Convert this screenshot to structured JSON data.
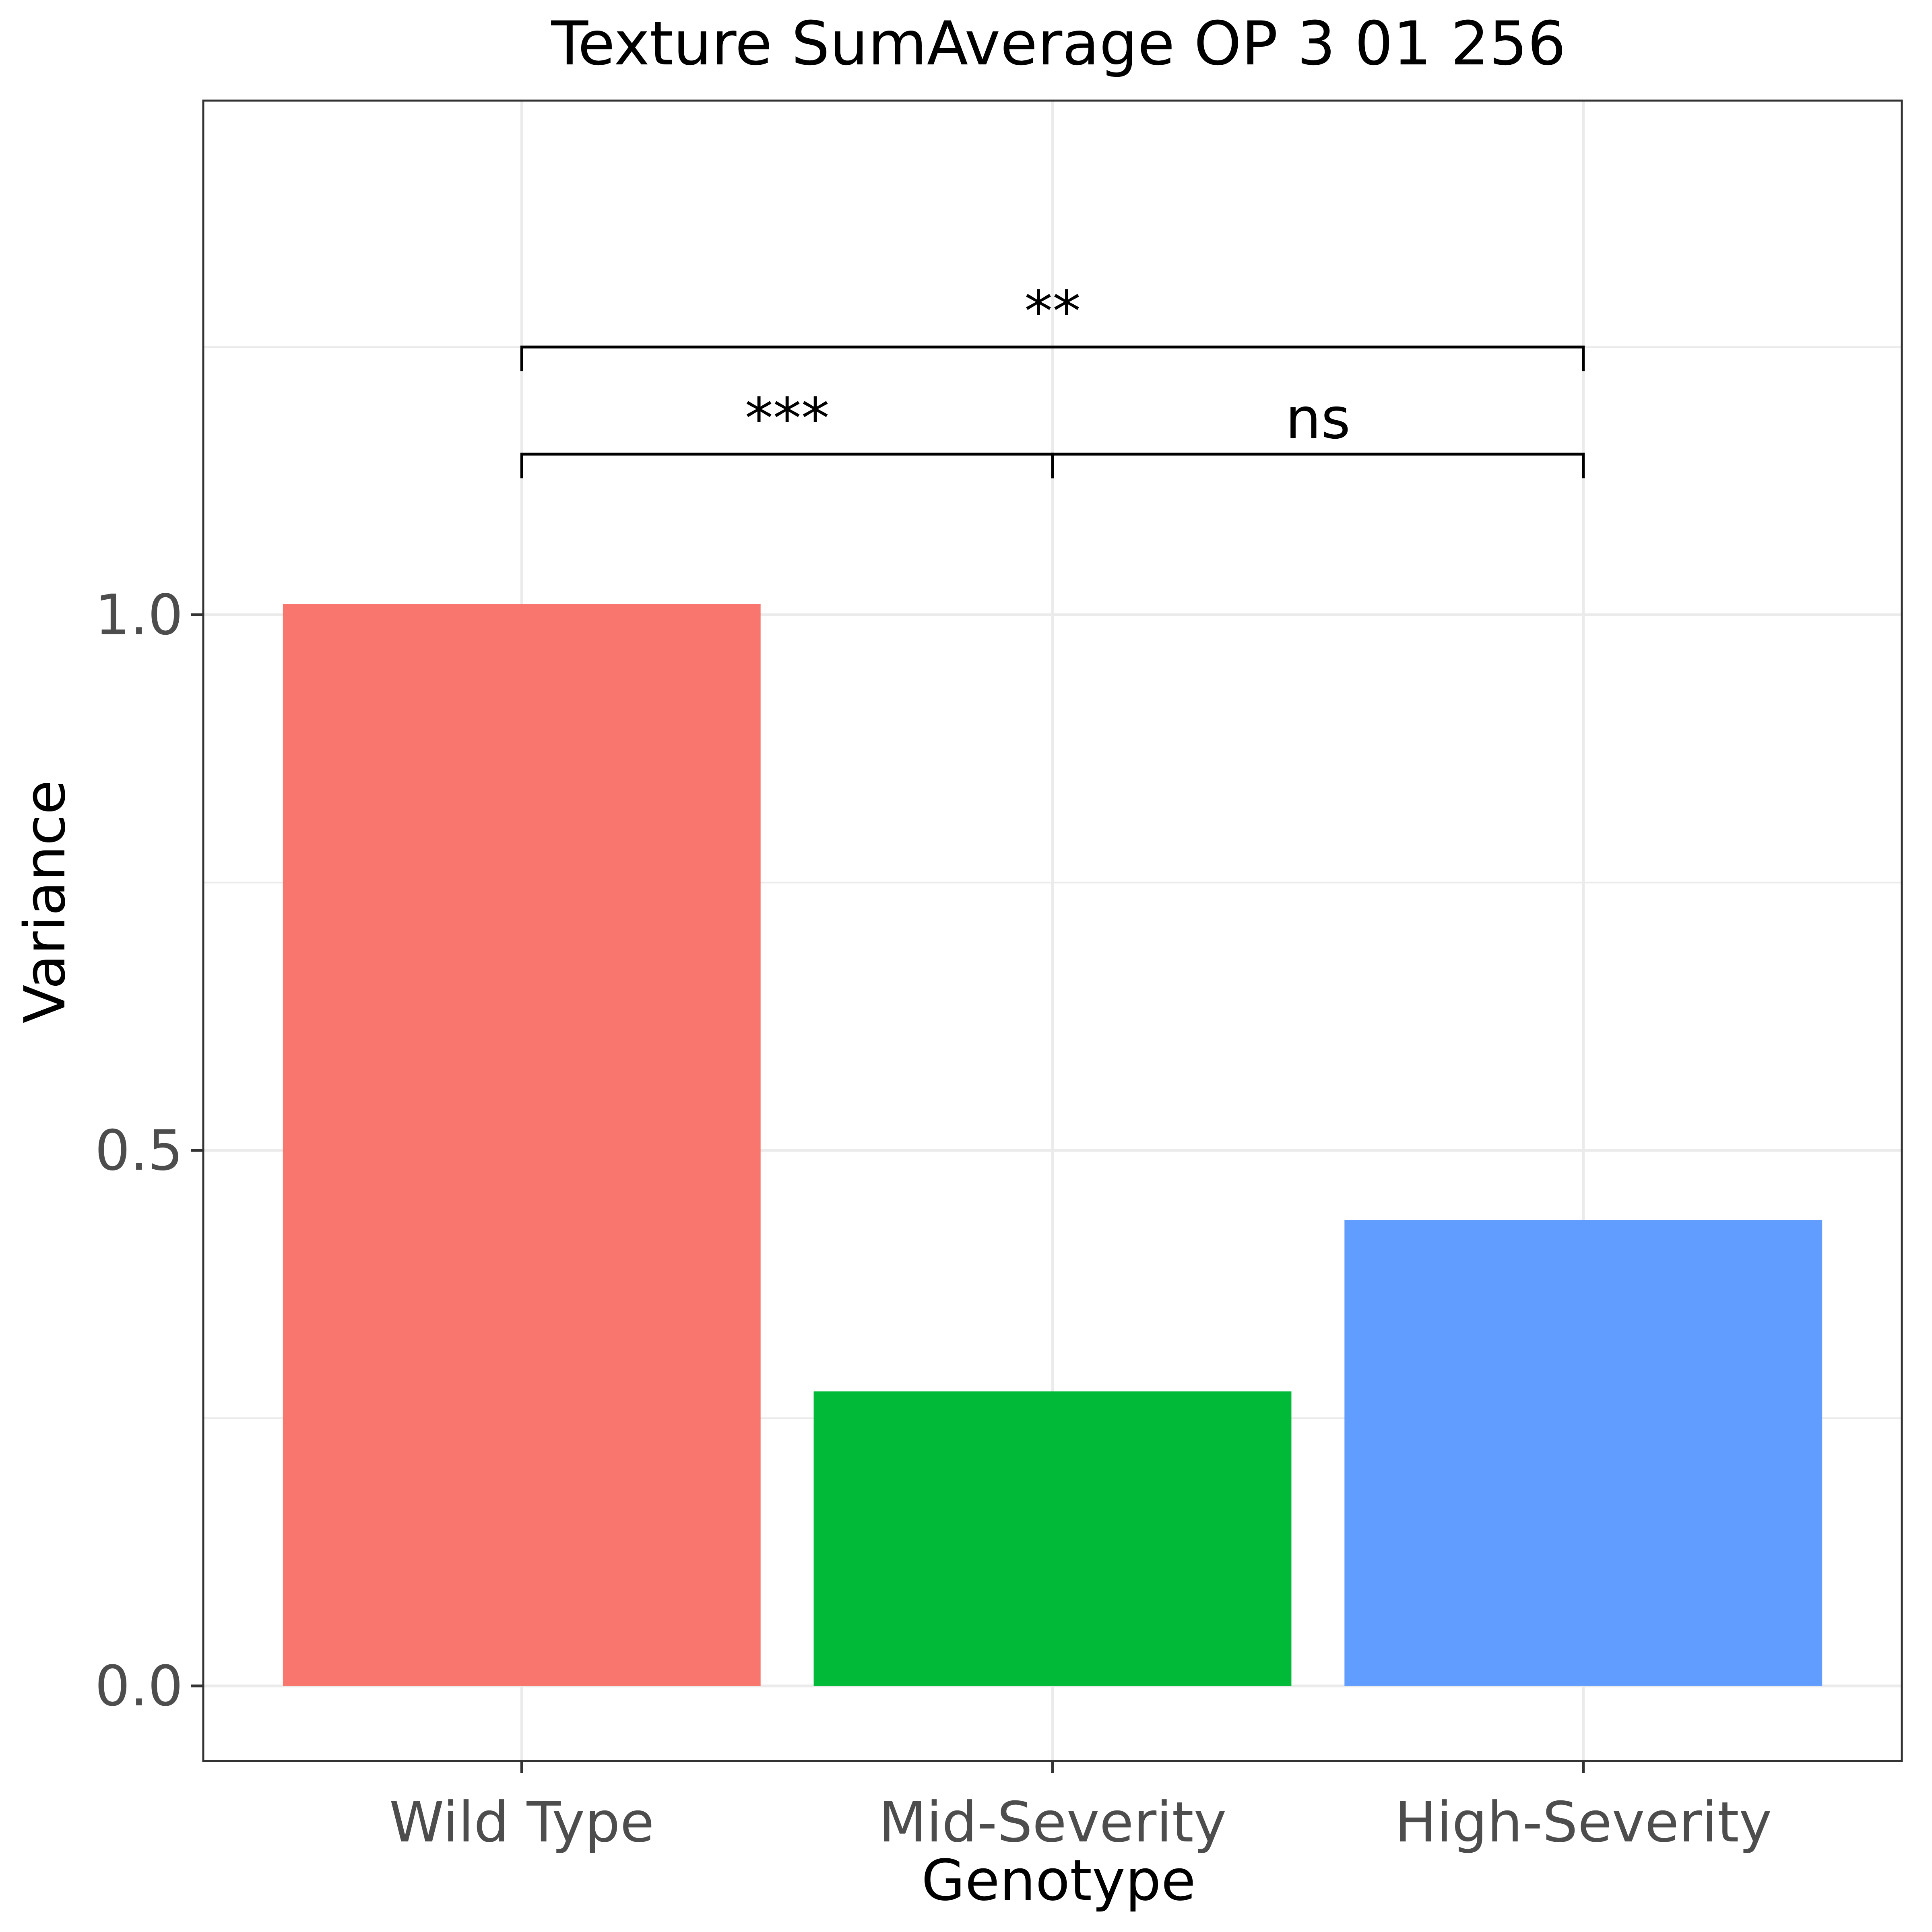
{
  "chart_data": {
    "type": "bar",
    "title": "Texture SumAverage OP 3 01 256",
    "xlabel": "Genotype",
    "ylabel": "Variance",
    "categories": [
      "Wild Type",
      "Mid-Severity",
      "High-Severity"
    ],
    "values": [
      1.01,
      0.275,
      0.435
    ],
    "colors": [
      "#f8766d",
      "#00ba38",
      "#619cff"
    ],
    "ylim": [
      -0.07,
      1.48
    ],
    "yticks": [
      0.0,
      0.5,
      1.0
    ],
    "ytick_labels": [
      "0.0",
      "0.5",
      "1.0"
    ],
    "grid": true,
    "legend": "none",
    "comparisons": [
      {
        "from": 0,
        "to": 1,
        "label": "***",
        "y": 1.15
      },
      {
        "from": 1,
        "to": 2,
        "label": "ns",
        "y": 1.15
      },
      {
        "from": 0,
        "to": 2,
        "label": "**",
        "y": 1.25
      }
    ]
  }
}
